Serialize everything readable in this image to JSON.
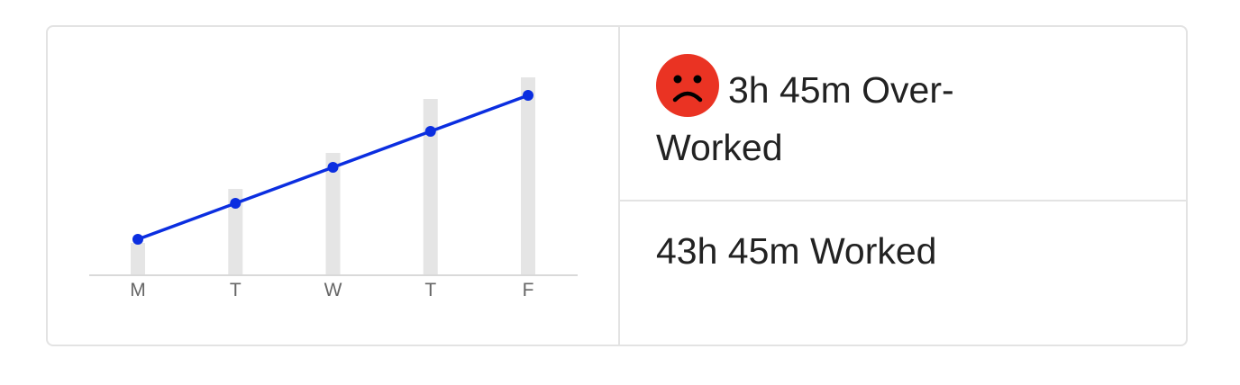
{
  "chart_data": {
    "type": "bar+line",
    "categories": [
      "M",
      "T",
      "W",
      "T",
      "F"
    ],
    "bar_values": [
      9,
      24,
      34,
      49,
      55
    ],
    "line_values": [
      10,
      20,
      30,
      40,
      50
    ],
    "ylim": [
      0,
      55
    ],
    "colors": {
      "bars": "#e5e5e5",
      "line": "#0b2ee0",
      "axis": "#d9d9d9",
      "tick_label": "#666666"
    }
  },
  "stats": {
    "overworked_icon": "sad-face-icon",
    "overworked_color": "#ea3323",
    "overworked_text": "3h 45m Over-Worked",
    "worked_text": "43h 45m Worked"
  }
}
